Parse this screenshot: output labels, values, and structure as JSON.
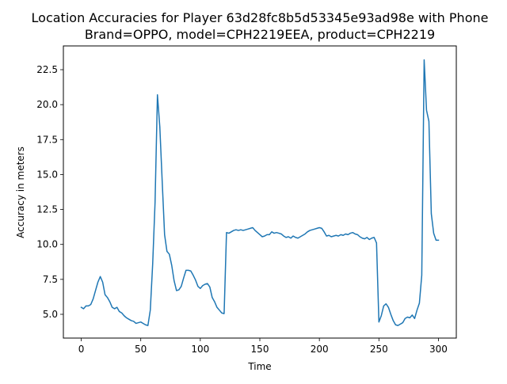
{
  "chart_data": {
    "type": "line",
    "title_line1": "Location Accuracies for Player 63d28fc8b5d53345e93ad98e with Phone",
    "title_line2": "Brand=OPPO, model=CPH2219EEA, product=CPH2219",
    "xlabel": "Time",
    "ylabel": "Accuracy in meters",
    "xlim": [
      -15,
      315
    ],
    "ylim": [
      3.3,
      24.2
    ],
    "xticks": [
      0,
      50,
      100,
      150,
      200,
      250,
      300
    ],
    "xtick_labels": [
      "0",
      "50",
      "100",
      "150",
      "200",
      "250",
      "300"
    ],
    "yticks": [
      5.0,
      7.5,
      10.0,
      12.5,
      15.0,
      17.5,
      20.0,
      22.5
    ],
    "ytick_labels": [
      "5.0",
      "7.5",
      "10.0",
      "12.5",
      "15.0",
      "17.5",
      "20.0",
      "22.5"
    ],
    "grid": false,
    "line_color": "#1f77b4",
    "series": [
      {
        "x": [
          0,
          2,
          4,
          6,
          8,
          10,
          12,
          14,
          16,
          18,
          20,
          22,
          24,
          26,
          28,
          30,
          32,
          34,
          36,
          38,
          40,
          42,
          44,
          46,
          48,
          50,
          52,
          54,
          56,
          58,
          60,
          62,
          64,
          66,
          68,
          70,
          72,
          74,
          76,
          78,
          80,
          82,
          84,
          86,
          88,
          90,
          92,
          94,
          96,
          98,
          100,
          102,
          104,
          106,
          108,
          110,
          112,
          114,
          116,
          118,
          120,
          122,
          124,
          126,
          128,
          130,
          132,
          134,
          136,
          138,
          140,
          142,
          144,
          146,
          148,
          150,
          152,
          154,
          156,
          158,
          160,
          162,
          164,
          166,
          168,
          170,
          172,
          174,
          176,
          178,
          180,
          182,
          184,
          186,
          188,
          190,
          192,
          194,
          196,
          198,
          200,
          202,
          204,
          206,
          208,
          210,
          212,
          214,
          216,
          218,
          220,
          222,
          224,
          226,
          228,
          230,
          232,
          234,
          236,
          238,
          240,
          242,
          244,
          246,
          248,
          250,
          252,
          254,
          256,
          258,
          260,
          262,
          264,
          266,
          268,
          270,
          272,
          274,
          276,
          278,
          280,
          282,
          284,
          286,
          288,
          290,
          292,
          294,
          296,
          298,
          300
        ],
        "y": [
          5.5,
          5.4,
          5.6,
          5.6,
          5.7,
          6.1,
          6.7,
          7.3,
          7.7,
          7.3,
          6.4,
          6.2,
          5.9,
          5.5,
          5.4,
          5.5,
          5.2,
          5.1,
          4.9,
          4.75,
          4.65,
          4.55,
          4.5,
          4.35,
          4.4,
          4.45,
          4.35,
          4.25,
          4.2,
          5.3,
          8.6,
          13.0,
          20.7,
          18.4,
          14.5,
          10.7,
          9.5,
          9.3,
          8.5,
          7.4,
          6.7,
          6.75,
          7.0,
          7.6,
          8.15,
          8.15,
          8.1,
          7.8,
          7.45,
          7.0,
          6.85,
          7.05,
          7.15,
          7.2,
          6.95,
          6.2,
          5.9,
          5.5,
          5.3,
          5.1,
          5.05,
          10.85,
          10.8,
          10.9,
          11.0,
          11.05,
          11.0,
          11.05,
          11.0,
          11.05,
          11.1,
          11.15,
          11.2,
          11.0,
          10.85,
          10.7,
          10.55,
          10.6,
          10.7,
          10.7,
          10.9,
          10.8,
          10.85,
          10.8,
          10.75,
          10.6,
          10.5,
          10.55,
          10.45,
          10.6,
          10.5,
          10.45,
          10.55,
          10.65,
          10.75,
          10.9,
          11.0,
          11.05,
          11.1,
          11.15,
          11.2,
          11.15,
          10.9,
          10.6,
          10.65,
          10.55,
          10.6,
          10.65,
          10.6,
          10.7,
          10.65,
          10.75,
          10.7,
          10.8,
          10.85,
          10.75,
          10.7,
          10.55,
          10.45,
          10.4,
          10.5,
          10.35,
          10.45,
          10.5,
          10.1,
          4.45,
          4.9,
          5.6,
          5.75,
          5.5,
          5.0,
          4.55,
          4.25,
          4.2,
          4.3,
          4.4,
          4.7,
          4.8,
          4.75,
          4.95,
          4.7,
          5.3,
          5.8,
          7.8,
          23.2,
          19.6,
          18.8,
          12.2,
          10.8,
          10.3,
          10.3
        ]
      }
    ]
  }
}
